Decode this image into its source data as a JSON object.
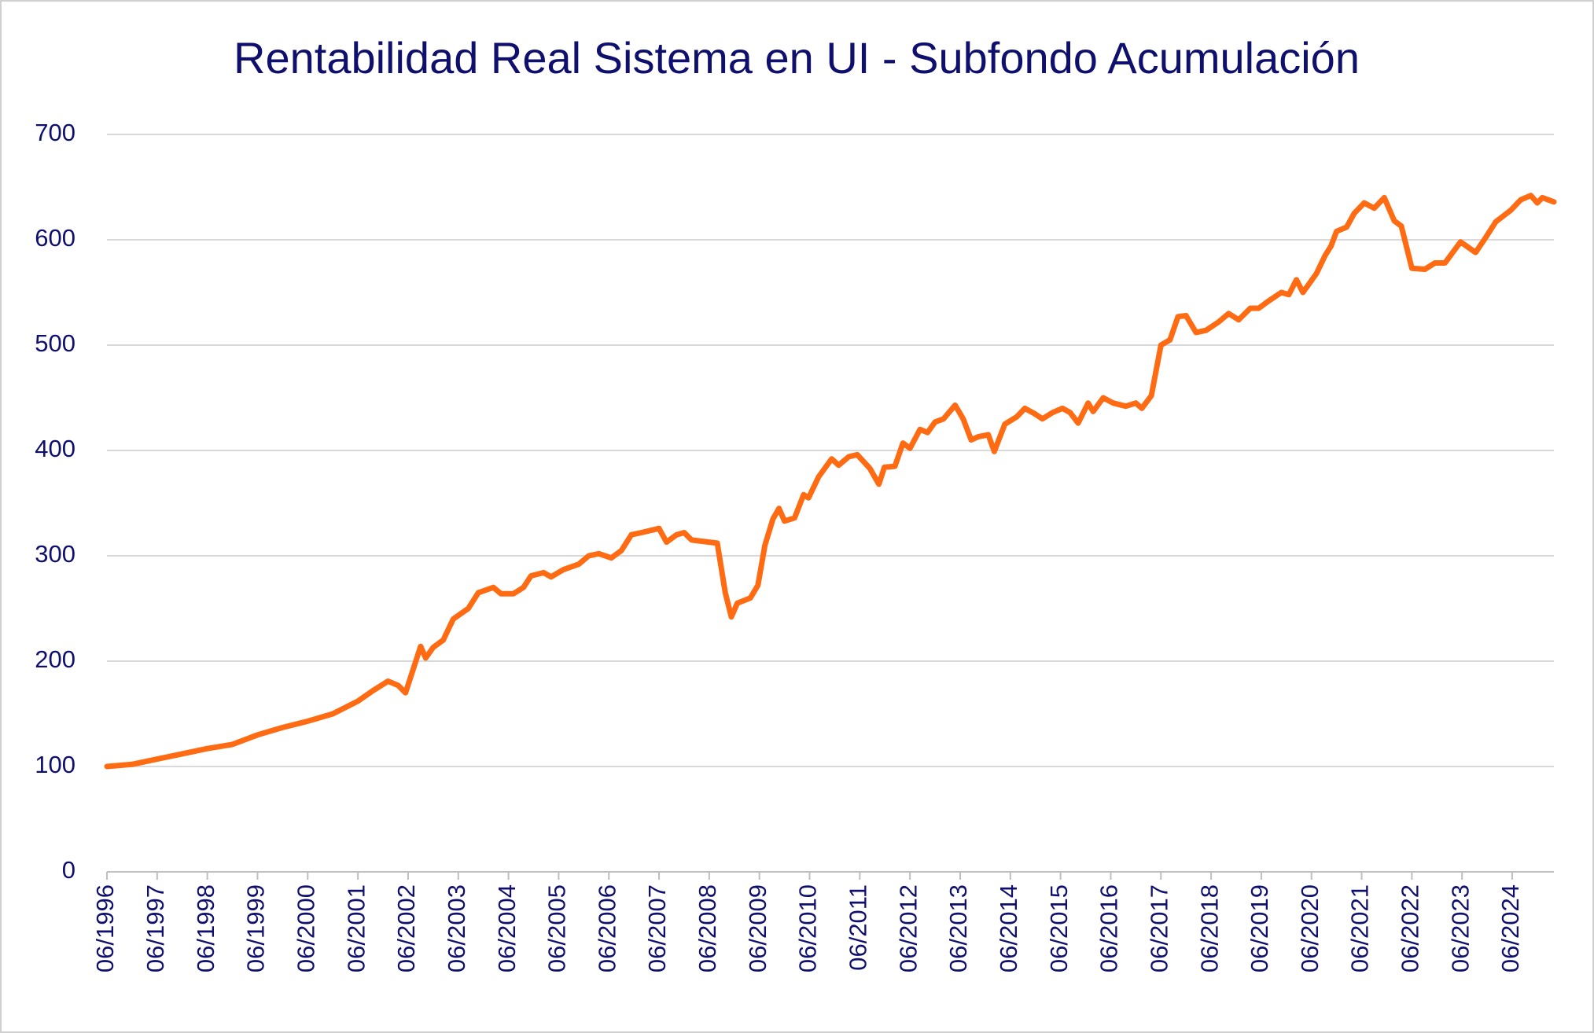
{
  "chart_data": {
    "type": "line",
    "title": "Rentabilidad Real Sistema en UI - Subfondo Acumulación",
    "color": "#ff6b12",
    "grid": true,
    "x": [
      1996.5,
      1997.0,
      1997.5,
      1998.0,
      1998.5,
      1999.0,
      1999.5,
      2000.0,
      2000.5,
      2001.0,
      2001.5,
      2001.8,
      2002.1,
      2002.3,
      2002.45,
      2002.6,
      2002.75,
      2002.85,
      2003.0,
      2003.2,
      2003.4,
      2003.7,
      2003.9,
      2004.2,
      2004.35,
      2004.6,
      2004.8,
      2004.95,
      2005.2,
      2005.35,
      2005.6,
      2005.9,
      2006.1,
      2006.3,
      2006.55,
      2006.75,
      2006.95,
      2007.15,
      2007.5,
      2007.65,
      2007.85,
      2008.0,
      2008.15,
      2008.5,
      2008.66,
      2008.82,
      2008.94,
      2009.06,
      2009.32,
      2009.47,
      2009.61,
      2009.77,
      2009.89,
      2010.0,
      2010.2,
      2010.38,
      2010.48,
      2010.68,
      2010.94,
      2011.08,
      2011.28,
      2011.45,
      2011.7,
      2011.88,
      2011.99,
      2012.2,
      2012.36,
      2012.5,
      2012.7,
      2012.85,
      2013.0,
      2013.17,
      2013.4,
      2013.56,
      2013.72,
      2013.86,
      2014.06,
      2014.18,
      2014.39,
      2014.63,
      2014.79,
      2014.98,
      2015.14,
      2015.34,
      2015.54,
      2015.69,
      2015.85,
      2016.05,
      2016.15,
      2016.35,
      2016.55,
      2016.8,
      2017.0,
      2017.12,
      2017.31,
      2017.5,
      2017.68,
      2017.84,
      2018.0,
      2018.2,
      2018.4,
      2018.65,
      2018.85,
      2019.05,
      2019.28,
      2019.45,
      2019.65,
      2019.9,
      2020.05,
      2020.2,
      2020.33,
      2020.6,
      2020.77,
      2020.89,
      2021.0,
      2021.2,
      2021.35,
      2021.55,
      2021.75,
      2021.95,
      2022.15,
      2022.29,
      2022.5,
      2022.76,
      2022.96,
      2023.16,
      2023.47,
      2023.77,
      2023.97,
      2024.17,
      2024.47,
      2024.67,
      2024.87,
      2025.0,
      2025.1,
      2025.33
    ],
    "values": [
      100,
      102,
      107,
      112,
      117,
      121,
      130,
      137,
      143,
      150,
      162,
      172,
      181,
      177,
      170,
      192,
      214,
      203,
      213,
      220,
      240,
      250,
      265,
      270,
      264,
      264,
      270,
      281,
      284,
      280,
      287,
      292,
      300,
      302,
      298,
      305,
      320,
      322,
      326,
      313,
      320,
      322,
      315,
      313,
      312,
      265,
      242,
      255,
      260,
      272,
      310,
      335,
      345,
      333,
      336,
      358,
      355,
      375,
      392,
      386,
      394,
      396,
      383,
      368,
      384,
      385,
      407,
      402,
      420,
      417,
      427,
      430,
      443,
      430,
      410,
      413,
      415,
      399,
      425,
      432,
      440,
      435,
      430,
      436,
      440,
      436,
      426,
      445,
      437,
      450,
      445,
      442,
      445,
      440,
      452,
      500,
      505,
      527,
      528,
      512,
      514,
      522,
      530,
      524,
      535,
      535,
      542,
      550,
      548,
      562,
      550,
      568,
      585,
      594,
      608,
      612,
      625,
      635,
      630,
      640,
      618,
      613,
      573,
      572,
      578,
      578,
      598,
      588,
      602,
      617,
      628,
      638,
      642,
      635,
      640,
      636
    ],
    "xlim": [
      1996.5,
      2025.33
    ],
    "ylim": [
      0,
      700
    ],
    "yticks": [
      0,
      100,
      200,
      300,
      400,
      500,
      600,
      700
    ],
    "xticks": [
      {
        "value": 1996.5,
        "label": "06/1996"
      },
      {
        "value": 1997.5,
        "label": "06/1997"
      },
      {
        "value": 1998.5,
        "label": "06/1998"
      },
      {
        "value": 1999.5,
        "label": "06/1999"
      },
      {
        "value": 2000.5,
        "label": "06/2000"
      },
      {
        "value": 2001.5,
        "label": "06/2001"
      },
      {
        "value": 2002.5,
        "label": "06/2002"
      },
      {
        "value": 2003.5,
        "label": "06/2003"
      },
      {
        "value": 2004.5,
        "label": "06/2004"
      },
      {
        "value": 2005.5,
        "label": "06/2005"
      },
      {
        "value": 2006.5,
        "label": "06/2006"
      },
      {
        "value": 2007.5,
        "label": "06/2007"
      },
      {
        "value": 2008.5,
        "label": "06/2008"
      },
      {
        "value": 2009.5,
        "label": "06/2009"
      },
      {
        "value": 2010.5,
        "label": "06/2010"
      },
      {
        "value": 2011.5,
        "label": "06/2011"
      },
      {
        "value": 2012.5,
        "label": "06/2012"
      },
      {
        "value": 2013.5,
        "label": "06/2013"
      },
      {
        "value": 2014.5,
        "label": "06/2014"
      },
      {
        "value": 2015.5,
        "label": "06/2015"
      },
      {
        "value": 2016.5,
        "label": "06/2016"
      },
      {
        "value": 2017.5,
        "label": "06/2017"
      },
      {
        "value": 2018.5,
        "label": "06/2018"
      },
      {
        "value": 2019.5,
        "label": "06/2019"
      },
      {
        "value": 2020.5,
        "label": "06/2020"
      },
      {
        "value": 2021.5,
        "label": "06/2021"
      },
      {
        "value": 2022.5,
        "label": "06/2022"
      },
      {
        "value": 2023.5,
        "label": "06/2023"
      },
      {
        "value": 2024.5,
        "label": "06/2024"
      }
    ]
  }
}
